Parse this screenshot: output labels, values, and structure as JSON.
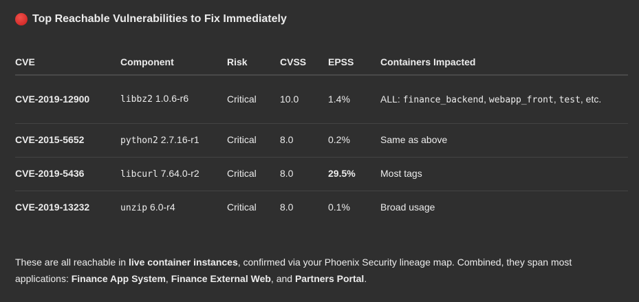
{
  "title": {
    "icon": "red-circle-icon",
    "text": "Top Reachable Vulnerabilities to Fix Immediately"
  },
  "table": {
    "headers": [
      "CVE",
      "Component",
      "Risk",
      "CVSS",
      "EPSS",
      "Containers Impacted"
    ],
    "rows": [
      {
        "cve": "CVE-2019-12900",
        "pkg": "libbz2",
        "ver": "1.0.6-r6",
        "risk": "Critical",
        "cvss": "10.0",
        "epss": "1.4%",
        "c_prefix": "ALL: ",
        "c1": "finance_backend",
        "s1": ", ",
        "c2": "webapp_front",
        "s2": ", ",
        "c3": "test",
        "c_suffix": ", etc."
      },
      {
        "cve": "CVE-2015-5652",
        "pkg": "python2",
        "ver": "2.7.16-r1",
        "risk": "Critical",
        "cvss": "8.0",
        "epss": "0.2%",
        "containers": "Same as above"
      },
      {
        "cve": "CVE-2019-5436",
        "pkg": "libcurl",
        "ver": "7.64.0-r2",
        "risk": "Critical",
        "cvss": "8.0",
        "epss": "29.5%",
        "containers": "Most tags"
      },
      {
        "cve": "CVE-2019-13232",
        "pkg": "unzip",
        "ver": "6.0-r4",
        "risk": "Critical",
        "cvss": "8.0",
        "epss": "0.1%",
        "containers": "Broad usage"
      }
    ]
  },
  "summary": {
    "t1": "These are all reachable in ",
    "b1": "live container instances",
    "t2": ", confirmed via your Phoenix Security lineage map. Combined, they span most applications: ",
    "b2": "Finance App System",
    "t3": ", ",
    "b3": "Finance External Web",
    "t4": ", and ",
    "b4": "Partners Portal",
    "t5": "."
  }
}
